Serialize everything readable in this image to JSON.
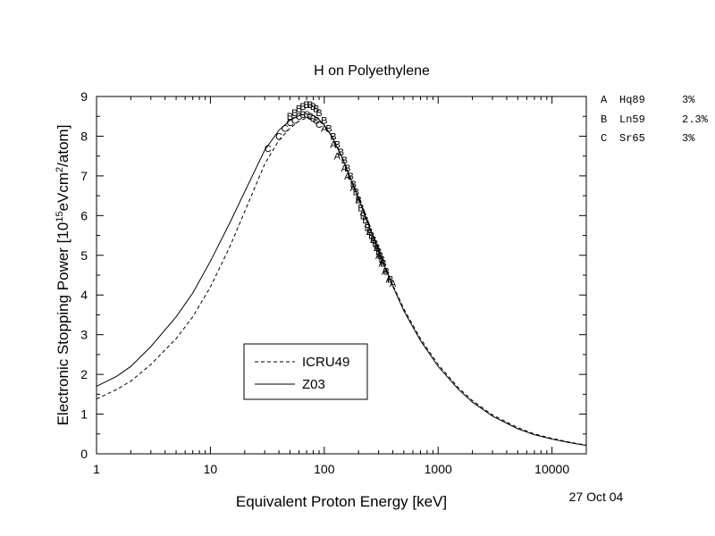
{
  "chart_data": {
    "type": "line",
    "title": "H on Polyethylene",
    "xlabel": "Equivalent Proton Energy [keV]",
    "ylabel_parts": [
      "Electronic Stopping Power [10",
      "15",
      "eVcm",
      "2",
      "/atom]"
    ],
    "x_scale": "log",
    "xlim": [
      1,
      20000
    ],
    "ylim": [
      0,
      9
    ],
    "x_ticks": [
      1,
      10,
      100,
      1000,
      10000
    ],
    "x_tick_labels": [
      "1",
      "10",
      "100",
      "1000",
      "10000"
    ],
    "y_ticks": [
      0,
      1,
      2,
      3,
      4,
      5,
      6,
      7,
      8,
      9
    ],
    "y_tick_labels": [
      "0",
      "1",
      "2",
      "3",
      "4",
      "5",
      "6",
      "7",
      "8",
      "9"
    ],
    "grid": false,
    "legend_position": "bottom-left",
    "series": [
      {
        "name": "ICRU49",
        "style": "dashed",
        "x": [
          1,
          1.5,
          2,
          3,
          5,
          7,
          10,
          15,
          20,
          30,
          40,
          50,
          60,
          70,
          80,
          90,
          100,
          120,
          150,
          200,
          250,
          300,
          400,
          500,
          700,
          1000,
          1500,
          2000,
          3000,
          5000,
          7000,
          10000,
          15000,
          20000
        ],
        "y": [
          1.38,
          1.62,
          1.83,
          2.25,
          2.9,
          3.45,
          4.2,
          5.25,
          6.1,
          7.3,
          7.9,
          8.2,
          8.38,
          8.46,
          8.45,
          8.38,
          8.27,
          7.95,
          7.35,
          6.45,
          5.72,
          5.12,
          4.25,
          3.65,
          2.9,
          2.25,
          1.67,
          1.34,
          0.98,
          0.66,
          0.5,
          0.39,
          0.28,
          0.22
        ]
      },
      {
        "name": "Z03",
        "style": "solid",
        "x": [
          1,
          1.5,
          2,
          3,
          5,
          7,
          10,
          15,
          20,
          30,
          40,
          50,
          60,
          70,
          80,
          90,
          100,
          120,
          150,
          200,
          250,
          300,
          400,
          500,
          700,
          1000,
          1500,
          2000,
          3000,
          5000,
          7000,
          10000,
          15000,
          20000
        ],
        "y": [
          1.7,
          1.95,
          2.2,
          2.7,
          3.45,
          4.05,
          4.85,
          5.85,
          6.6,
          7.65,
          8.15,
          8.4,
          8.52,
          8.56,
          8.52,
          8.42,
          8.28,
          7.93,
          7.33,
          6.42,
          5.7,
          5.1,
          4.22,
          3.6,
          2.85,
          2.2,
          1.63,
          1.3,
          0.95,
          0.63,
          0.48,
          0.37,
          0.27,
          0.21
        ]
      }
    ],
    "markers": [
      {
        "label": "A",
        "x": [
          100,
          120,
          130,
          150,
          160,
          180,
          200,
          220,
          240,
          250,
          270,
          290,
          300,
          320,
          340,
          370,
          400
        ],
        "y": [
          8.2,
          7.8,
          7.5,
          7.2,
          7.0,
          6.7,
          6.4,
          6.1,
          5.8,
          5.6,
          5.4,
          5.2,
          5.0,
          4.8,
          4.6,
          4.4,
          4.3
        ]
      },
      {
        "label": "B",
        "x": [
          50,
          55,
          60,
          65,
          70,
          75,
          80,
          85,
          90,
          100,
          110,
          120,
          130,
          140,
          150,
          160,
          170,
          180,
          190,
          200,
          210,
          220,
          230,
          240,
          250,
          260,
          270,
          280,
          290,
          300,
          310,
          320,
          330,
          350,
          380
        ],
        "y": [
          8.5,
          8.6,
          8.7,
          8.75,
          8.8,
          8.8,
          8.75,
          8.7,
          8.6,
          8.4,
          8.2,
          8.0,
          7.8,
          7.6,
          7.4,
          7.2,
          7.0,
          6.8,
          6.6,
          6.4,
          6.2,
          6.0,
          5.9,
          5.7,
          5.6,
          5.5,
          5.4,
          5.3,
          5.2,
          5.1,
          5.0,
          4.9,
          4.8,
          4.6,
          4.4
        ]
      },
      {
        "label": "C",
        "x": [
          32,
          40,
          45,
          50,
          55,
          60,
          65,
          70,
          75,
          80,
          85,
          90
        ],
        "y": [
          7.7,
          8.0,
          8.2,
          8.35,
          8.4,
          8.5,
          8.55,
          8.55,
          8.5,
          8.45,
          8.4,
          8.3
        ]
      }
    ],
    "ref_key": [
      {
        "label": "A",
        "name": "Hq89",
        "value": "3%"
      },
      {
        "label": "B",
        "name": "Ln59",
        "value": "2.3%"
      },
      {
        "label": "C",
        "name": "Sr65",
        "value": "3%"
      }
    ],
    "date": "27 Oct 04"
  }
}
